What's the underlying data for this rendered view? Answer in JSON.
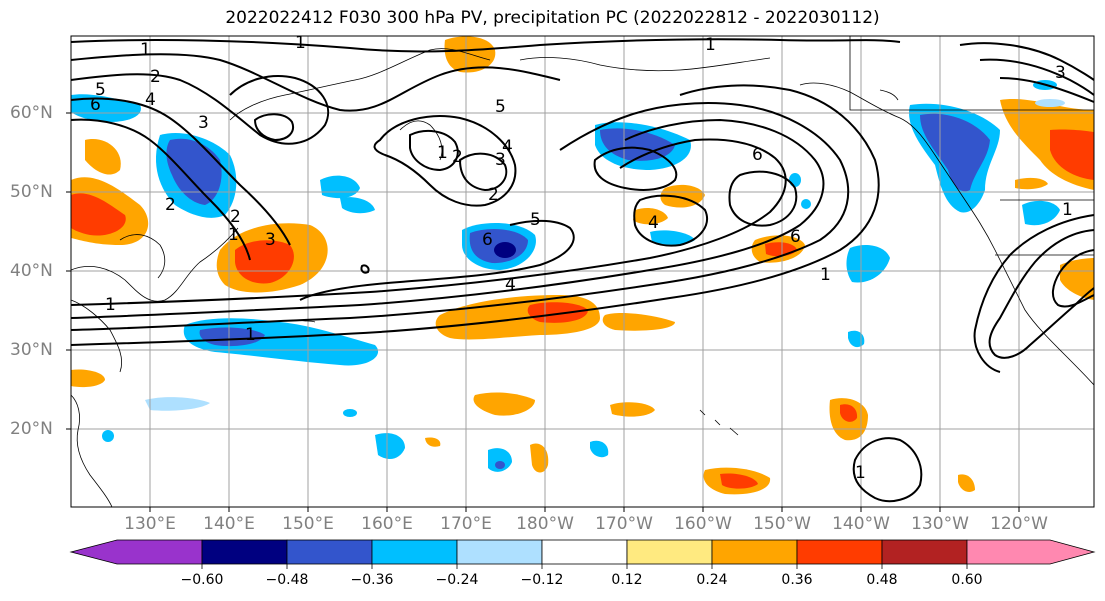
{
  "title": "2022022412 F030 300 hPa PV, precipitation PC (2022022812 - 2022030112)",
  "map": {
    "lat_labels": [
      "60°N",
      "50°N",
      "40°N",
      "30°N",
      "20°N"
    ],
    "lon_labels": [
      "130°E",
      "140°E",
      "150°E",
      "160°E",
      "170°E",
      "180°W",
      "170°W",
      "160°W",
      "150°W",
      "140°W",
      "130°W",
      "120°W"
    ],
    "contour_labels": [
      "1",
      "2",
      "5",
      "6",
      "4",
      "3",
      "2",
      "1",
      "3",
      "2",
      "5",
      "3",
      "4",
      "1",
      "2",
      "2",
      "5",
      "6",
      "4",
      "6",
      "4",
      "1",
      "6",
      "1",
      "1",
      "1",
      "1",
      "3",
      "1",
      "1"
    ],
    "colors": {
      "grid": "#a0a0a0",
      "purple": "#9933cc",
      "navy": "#000080",
      "blue": "#3355cc",
      "cyan": "#00bfff",
      "lightblue": "#aee0ff",
      "yellow": "#ffea80",
      "orange": "#ffa500",
      "redorange": "#ff3c00",
      "darkred": "#b22222",
      "pink": "#ff88b0"
    }
  },
  "colorbar": {
    "ticks": [
      "−0.60",
      "−0.48",
      "−0.36",
      "−0.24",
      "−0.12",
      "0.12",
      "0.24",
      "0.36",
      "0.48",
      "0.60"
    ],
    "colors": [
      "#9933cc",
      "#000080",
      "#3355cc",
      "#00bfff",
      "#aee0ff",
      "#ffffff",
      "#ffea80",
      "#ffa500",
      "#ff3c00",
      "#b22222",
      "#ff88b0"
    ]
  }
}
